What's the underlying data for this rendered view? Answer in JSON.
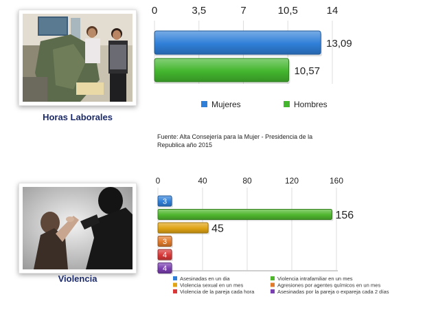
{
  "sections": [
    {
      "caption": "Horas Laborales",
      "photo": "women-sewing-photo"
    },
    {
      "caption": "Violencia",
      "photo": "domestic-violence-photo"
    }
  ],
  "source_note": "Fuente: Alta Consejería para la Mujer - Presidencia de la Republica año 2015",
  "chart_data": [
    {
      "type": "bar",
      "orientation": "horizontal",
      "title": "",
      "categories": [
        "Mujeres",
        "Hombres"
      ],
      "values": [
        13.09,
        10.57
      ],
      "value_labels": [
        "13,09",
        "10,57"
      ],
      "xlim": [
        0,
        14
      ],
      "ticks": [
        "0",
        "3,5",
        "7",
        "10,5",
        "14"
      ],
      "tick_values": [
        0,
        3.5,
        7,
        10.5,
        14
      ],
      "colors": [
        "#2f7fd8",
        "#43b62e"
      ],
      "legend": {
        "placement": "bottom",
        "items": [
          "Mujeres",
          "Hombres"
        ]
      },
      "grid": true
    },
    {
      "type": "bar",
      "orientation": "horizontal",
      "title": "",
      "categories": [
        "Asesinadas en un dia",
        "Violencia intrafamiliar en un mes",
        "Violencia sexual en un mes",
        "Agresiones por agentes químicos en un mes",
        "Violencia de la pareja cada hora",
        "Asesinadas por la pareja o expareja cada 2  días"
      ],
      "values": [
        3,
        156,
        45,
        3,
        4,
        4
      ],
      "value_labels": [
        "3",
        "156",
        "45",
        "3",
        "4",
        "4"
      ],
      "xlim": [
        0,
        160
      ],
      "ticks": [
        "0",
        "40",
        "80",
        "120",
        "160"
      ],
      "tick_values": [
        0,
        40,
        80,
        120,
        160
      ],
      "colors": [
        "#2f7fd8",
        "#4fb62e",
        "#e0a414",
        "#e07a2c",
        "#d83838",
        "#7a3fb0"
      ],
      "legend": {
        "placement": "bottom",
        "columns": 2
      },
      "grid": true
    }
  ]
}
